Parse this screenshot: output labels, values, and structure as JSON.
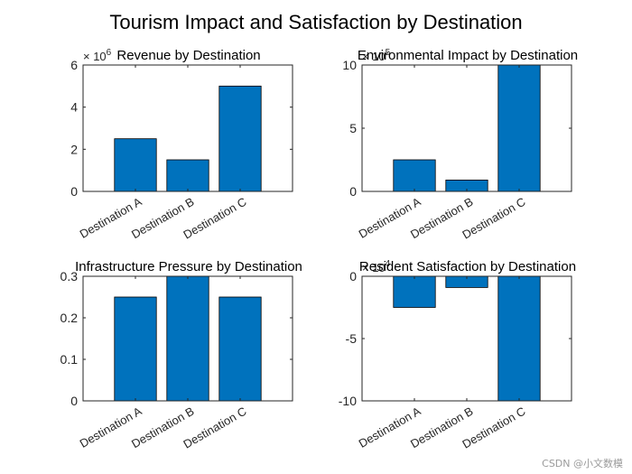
{
  "figure": {
    "title": "Tourism Impact and Satisfaction by Destination",
    "watermark": "CSDN @小文数模",
    "bar_color": "#0072BD"
  },
  "chart_data": [
    {
      "type": "bar",
      "title": "Revenue by Destination",
      "categories": [
        "Destination A",
        "Destination B",
        "Destination C"
      ],
      "values": [
        2500000,
        1500000,
        5000000
      ],
      "ylim": [
        0,
        6000000
      ],
      "yticks": [
        0,
        2000000,
        4000000,
        6000000
      ],
      "ytick_labels": [
        "0",
        "2",
        "4",
        "6"
      ],
      "exponent_label": "× 10^6",
      "exponent": 6,
      "xlabel": "",
      "ylabel": ""
    },
    {
      "type": "bar",
      "title": "Environmental Impact by Destination",
      "categories": [
        "Destination A",
        "Destination B",
        "Destination C"
      ],
      "values": [
        250000,
        90000,
        1000000
      ],
      "ylim": [
        0,
        1000000
      ],
      "yticks": [
        0,
        500000,
        1000000
      ],
      "ytick_labels": [
        "0",
        "5",
        "10"
      ],
      "exponent_label": "× 10^5",
      "exponent": 5,
      "xlabel": "",
      "ylabel": ""
    },
    {
      "type": "bar",
      "title": "Infrastructure Pressure by Destination",
      "categories": [
        "Destination A",
        "Destination B",
        "Destination C"
      ],
      "values": [
        0.25,
        0.3,
        0.25
      ],
      "ylim": [
        0,
        0.3
      ],
      "yticks": [
        0,
        0.1,
        0.2,
        0.3
      ],
      "ytick_labels": [
        "0",
        "0.1",
        "0.2",
        "0.3"
      ],
      "exponent_label": "",
      "exponent": 0,
      "xlabel": "",
      "ylabel": ""
    },
    {
      "type": "bar",
      "title": "Resident Satisfaction by Destination",
      "categories": [
        "Destination A",
        "Destination B",
        "Destination C"
      ],
      "values": [
        -25000,
        -9000,
        -100000
      ],
      "ylim": [
        -100000,
        0
      ],
      "yticks": [
        -100000,
        -50000,
        0
      ],
      "ytick_labels": [
        "-10",
        "-5",
        "0"
      ],
      "exponent_label": "× 10^4",
      "exponent": 4,
      "xlabel": "",
      "ylabel": ""
    }
  ]
}
